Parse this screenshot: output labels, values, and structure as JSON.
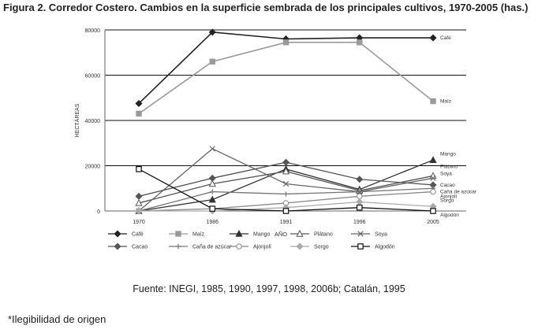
{
  "page": {
    "title": "Figura 2. Corredor Costero. Cambios en la superficie sembrada de los principales cultivos, 1970-2005 (has.)",
    "source": "Fuente: INEGI, 1985, 1990, 1997, 1998, 2006b; Catalán, 1995",
    "note": "*Ilegibilidad de origen"
  },
  "chart_data": {
    "type": "line",
    "title": "",
    "xlabel": "AÑO",
    "ylabel": "HECTÁREAS",
    "x": [
      "1970",
      "1986",
      "1991",
      "1996",
      "2005"
    ],
    "yticks": [
      "0",
      "20000",
      "40000",
      "60000",
      "80000"
    ],
    "ylim": [
      0,
      80000
    ],
    "series": [
      {
        "name": "Café",
        "end_label": "Café",
        "marker": "diamond-filled",
        "color": "#222222",
        "values": [
          47500,
          79000,
          76000,
          76500,
          76500
        ]
      },
      {
        "name": "Maíz",
        "end_label": "Maíz",
        "marker": "square-filled",
        "color": "#9a9a9a",
        "values": [
          43000,
          66000,
          74500,
          74500,
          48500
        ]
      },
      {
        "name": "Mango",
        "end_label": "Mango",
        "marker": "triangle-filled",
        "color": "#333333",
        "values": [
          0,
          5000,
          18500,
          9500,
          22500
        ]
      },
      {
        "name": "Plátano",
        "end_label": "Plátano",
        "marker": "triangle-open",
        "color": "#555555",
        "values": [
          3500,
          12000,
          17500,
          9000,
          15500
        ]
      },
      {
        "name": "Soya",
        "end_label": "Soya",
        "marker": "x",
        "color": "#666666",
        "values": [
          0,
          27500,
          12000,
          8500,
          14500
        ]
      },
      {
        "name": "Cacao",
        "end_label": "Cacao",
        "marker": "diamond-filled",
        "color": "#555555",
        "values": [
          6500,
          14500,
          21500,
          14000,
          11500
        ]
      },
      {
        "name": "Caña de azúcar",
        "end_label": "Caña de azúcar",
        "marker": "plus",
        "color": "#777777",
        "values": [
          0,
          8500,
          7500,
          8500,
          10000
        ]
      },
      {
        "name": "Ajonjolí",
        "end_label": "Ajonjolí",
        "marker": "open-circle",
        "color": "#888888",
        "values": [
          0,
          1000,
          3500,
          6500,
          8500
        ]
      },
      {
        "name": "Sorgo",
        "end_label": "Sorgo",
        "marker": "diamond-filled",
        "color": "#aaaaaa",
        "values": [
          0,
          0,
          1500,
          4000,
          2000
        ]
      },
      {
        "name": "Algodón",
        "end_label": "Algodón",
        "marker": "square-open",
        "color": "#111111",
        "values": [
          18500,
          1000,
          0,
          1500,
          0
        ]
      }
    ],
    "legend": {
      "position": "bottom",
      "labels": [
        "Café",
        "Maíz",
        "Mango",
        "Plátano",
        "Soya",
        "Cacao",
        "Caña de azúcar",
        "Ajonjolí",
        "Sorgo",
        "Algodón"
      ]
    }
  }
}
